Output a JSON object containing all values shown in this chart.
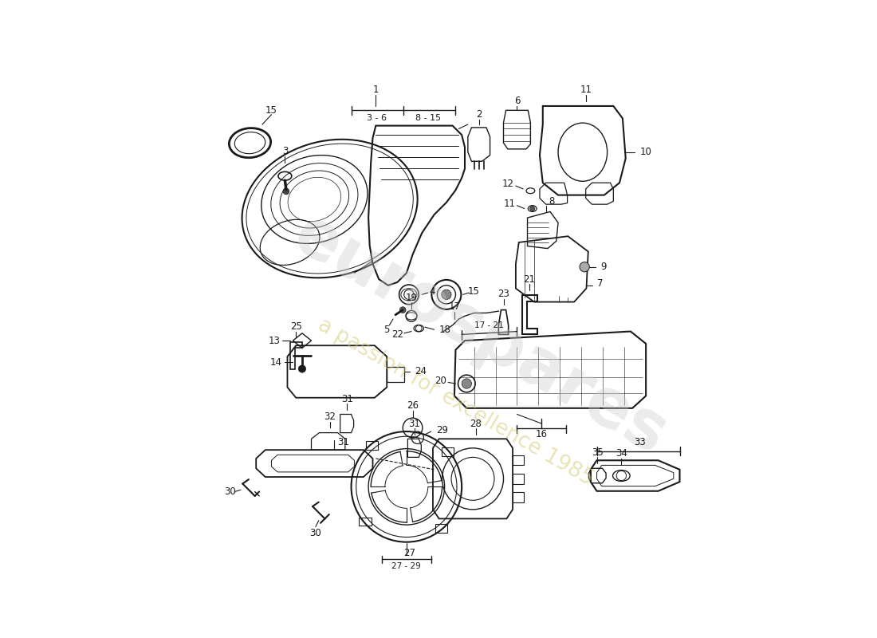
{
  "background_color": "#ffffff",
  "color": "#1a1a1a",
  "wm1": "eurospares",
  "wm2": "a passion for excellence 1985",
  "wm1_color": "#cccccc",
  "wm2_color": "#d4c870",
  "wm1_alpha": 0.38,
  "wm2_alpha": 0.5,
  "wm1_size": 60,
  "wm2_size": 19,
  "wm1_rot": -30,
  "wm2_rot": -30,
  "fs": 8.5
}
